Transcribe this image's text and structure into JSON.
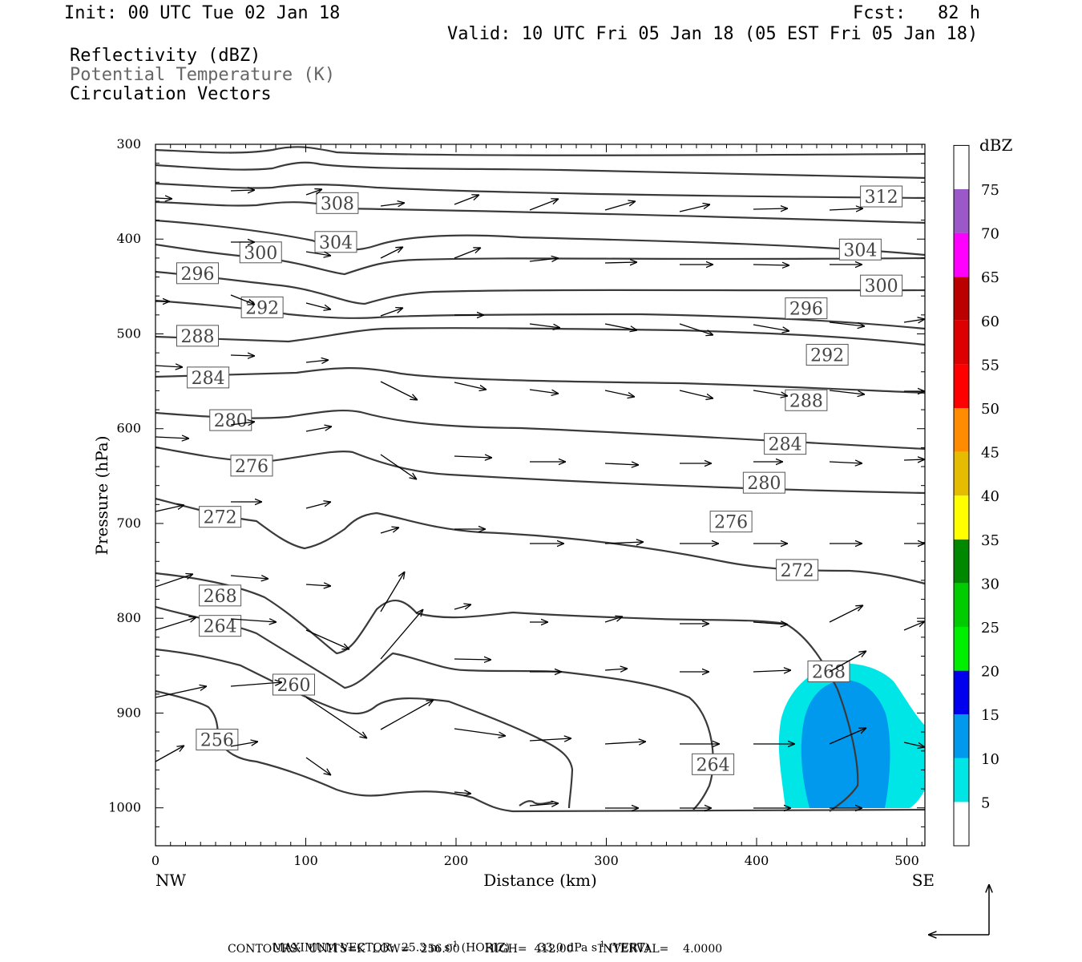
{
  "header": {
    "init": "Init: 00 UTC Tue 02 Jan 18",
    "fcst": "Fcst:   82 h",
    "valid": "Valid: 10 UTC Fri 05 Jan 18 (05 EST Fri 05 Jan 18)",
    "fields": [
      "Reflectivity (dBZ)",
      "Potential Temperature (K)",
      "Circulation Vectors"
    ]
  },
  "footer": {
    "max_vector_label": "MAXIMUM VECTOR:",
    "horiz": "25.3 m s",
    "horiz_unit": "(HORIZ)",
    "vert": "33.0 dPa s",
    "vert_unit": "(VERT)",
    "exp": "-1",
    "contours": "CONTOURS:  UNITS=K  LOW=   256.00       HIGH=  412.00       INTERVAL=    4.0000"
  },
  "colors": {
    "contour": "#3a3a3a",
    "refl_5": "#00e6e6",
    "refl_10": "#0099ee",
    "vector": "#000000"
  },
  "chart_data": {
    "type": "contour",
    "xlabel": "Distance (km)",
    "ylabel": "Pressure (hPa)",
    "xlim": [
      0,
      512
    ],
    "ylim": [
      1040,
      300
    ],
    "x_ticks": [
      0,
      100,
      200,
      300,
      400,
      500
    ],
    "y_ticks": [
      300,
      400,
      500,
      600,
      700,
      800,
      900,
      1000
    ],
    "x_left_label": "NW",
    "x_right_label": "SE",
    "colorbar": {
      "unit": "dBZ",
      "levels": [
        5,
        10,
        15,
        20,
        25,
        30,
        35,
        40,
        45,
        50,
        55,
        60,
        65,
        70,
        75
      ],
      "colors": [
        "#00e6e6",
        "#0099ee",
        "#0000ee",
        "#00ee00",
        "#00cc00",
        "#008800",
        "#ffff00",
        "#e6bc00",
        "#ff8c00",
        "#ff0000",
        "#dd0000",
        "#bb0000",
        "#ff00ff",
        "#9b59c8",
        "#ffffff"
      ]
    },
    "contour_labels": [
      {
        "text": "308",
        "x": 121,
        "p": 362
      },
      {
        "text": "312",
        "x": 483,
        "p": 355
      },
      {
        "text": "304",
        "x": 120,
        "p": 403
      },
      {
        "text": "304",
        "x": 469,
        "p": 411
      },
      {
        "text": "300",
        "x": 70,
        "p": 414
      },
      {
        "text": "300",
        "x": 483,
        "p": 449
      },
      {
        "text": "296",
        "x": 28,
        "p": 436
      },
      {
        "text": "296",
        "x": 433,
        "p": 473
      },
      {
        "text": "292",
        "x": 71,
        "p": 472
      },
      {
        "text": "292",
        "x": 447,
        "p": 522
      },
      {
        "text": "288",
        "x": 28,
        "p": 502
      },
      {
        "text": "288",
        "x": 433,
        "p": 570
      },
      {
        "text": "284",
        "x": 35,
        "p": 546
      },
      {
        "text": "284",
        "x": 419,
        "p": 616
      },
      {
        "text": "280",
        "x": 50,
        "p": 591
      },
      {
        "text": "280",
        "x": 405,
        "p": 657
      },
      {
        "text": "276",
        "x": 64,
        "p": 639
      },
      {
        "text": "276",
        "x": 383,
        "p": 698
      },
      {
        "text": "272",
        "x": 43,
        "p": 693
      },
      {
        "text": "272",
        "x": 427,
        "p": 749
      },
      {
        "text": "268",
        "x": 43,
        "p": 776
      },
      {
        "text": "268",
        "x": 448,
        "p": 856
      },
      {
        "text": "264",
        "x": 43,
        "p": 808
      },
      {
        "text": "264",
        "x": 371,
        "p": 954
      },
      {
        "text": "260",
        "x": 92,
        "p": 870
      },
      {
        "text": "256",
        "x": 41,
        "p": 928
      }
    ]
  }
}
